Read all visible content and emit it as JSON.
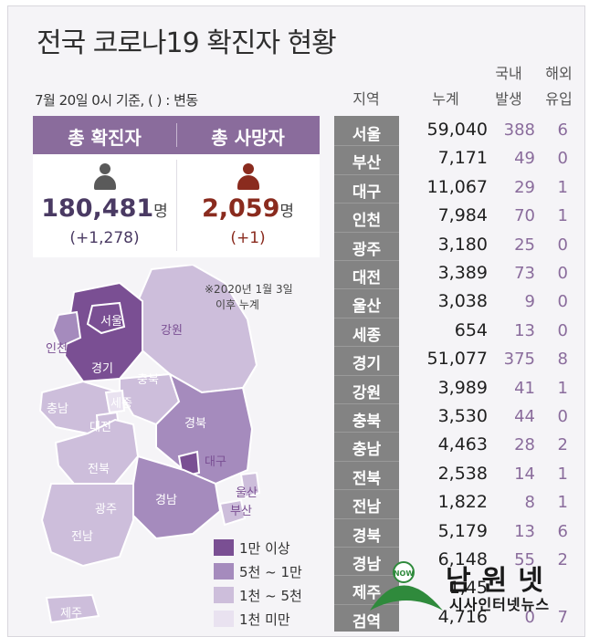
{
  "title": "전국 코로나19 확진자 현황",
  "subtitle": "7월 20일 0시 기준, ( ) : 변동",
  "summary": {
    "confirmed_label": "총 확진자",
    "deaths_label": "총 사망자",
    "confirmed_value": "180,481",
    "confirmed_unit": "명",
    "confirmed_delta": "(+1,278)",
    "deaths_value": "2,059",
    "deaths_unit": "명",
    "deaths_delta": "(+1)"
  },
  "map": {
    "note_line1": "※2020년 1월 3일",
    "note_line2": "이후 누계",
    "labels": {
      "seoul": "서울",
      "incheon": "인천",
      "gyeonggi": "경기",
      "gangwon": "강원",
      "chungbuk": "충북",
      "sejong": "세종",
      "chungnam": "충남",
      "daejeon": "대전",
      "gyeongbuk": "경북",
      "daegu": "대구",
      "jeonbuk": "전북",
      "ulsan": "울산",
      "gyeongnam": "경남",
      "busan": "부산",
      "gwangju": "광주",
      "jeonnam": "전남",
      "jeju": "제주"
    }
  },
  "legend": [
    {
      "label": "1만 이상",
      "color": "#7a4f93"
    },
    {
      "label": "5천 ~ 1만",
      "color": "#a58bbd"
    },
    {
      "label": "1천 ~ 5천",
      "color": "#cdbedb"
    },
    {
      "label": "1천 미만",
      "color": "#e9e2f0"
    }
  ],
  "chart_data": {
    "type": "table",
    "title": "전국 코로나19 확진자 현황",
    "columns": [
      "지역",
      "누계",
      "국내 발생",
      "해외 유입"
    ],
    "header_region": "지역",
    "header_total": "누계",
    "header_domestic_1": "국내",
    "header_domestic_2": "발생",
    "header_import_1": "해외",
    "header_import_2": "유입",
    "rows": [
      {
        "region": "서울",
        "total": "59,040",
        "domestic": "388",
        "imported": "6"
      },
      {
        "region": "부산",
        "total": "7,171",
        "domestic": "49",
        "imported": "0"
      },
      {
        "region": "대구",
        "total": "11,067",
        "domestic": "29",
        "imported": "1"
      },
      {
        "region": "인천",
        "total": "7,984",
        "domestic": "70",
        "imported": "1"
      },
      {
        "region": "광주",
        "total": "3,180",
        "domestic": "25",
        "imported": "0"
      },
      {
        "region": "대전",
        "total": "3,389",
        "domestic": "73",
        "imported": "0"
      },
      {
        "region": "울산",
        "total": "3,038",
        "domestic": "9",
        "imported": "0"
      },
      {
        "region": "세종",
        "total": "654",
        "domestic": "13",
        "imported": "0"
      },
      {
        "region": "경기",
        "total": "51,077",
        "domestic": "375",
        "imported": "8"
      },
      {
        "region": "강원",
        "total": "3,989",
        "domestic": "41",
        "imported": "1"
      },
      {
        "region": "충북",
        "total": "3,530",
        "domestic": "44",
        "imported": "0"
      },
      {
        "region": "충남",
        "total": "4,463",
        "domestic": "28",
        "imported": "2"
      },
      {
        "region": "전북",
        "total": "2,538",
        "domestic": "14",
        "imported": "1"
      },
      {
        "region": "전남",
        "total": "1,822",
        "domestic": "8",
        "imported": "1"
      },
      {
        "region": "경북",
        "total": "5,179",
        "domestic": "13",
        "imported": "6"
      },
      {
        "region": "경남",
        "total": "6,148",
        "domestic": "55",
        "imported": "2"
      },
      {
        "region": "제주",
        "total": "1,45",
        "domestic": "",
        "imported": ""
      },
      {
        "region": "검역",
        "total": "4,716",
        "domestic": "0",
        "imported": "7"
      }
    ]
  },
  "logo": {
    "brand": "남원넷",
    "tagline": "시사인터넷뉴스",
    "badge": "NOW"
  },
  "colors": {
    "accent": "#8a6c9c",
    "confirmed": "#4a3a63",
    "deaths": "#8a2b1e",
    "region_column": "#838383"
  }
}
